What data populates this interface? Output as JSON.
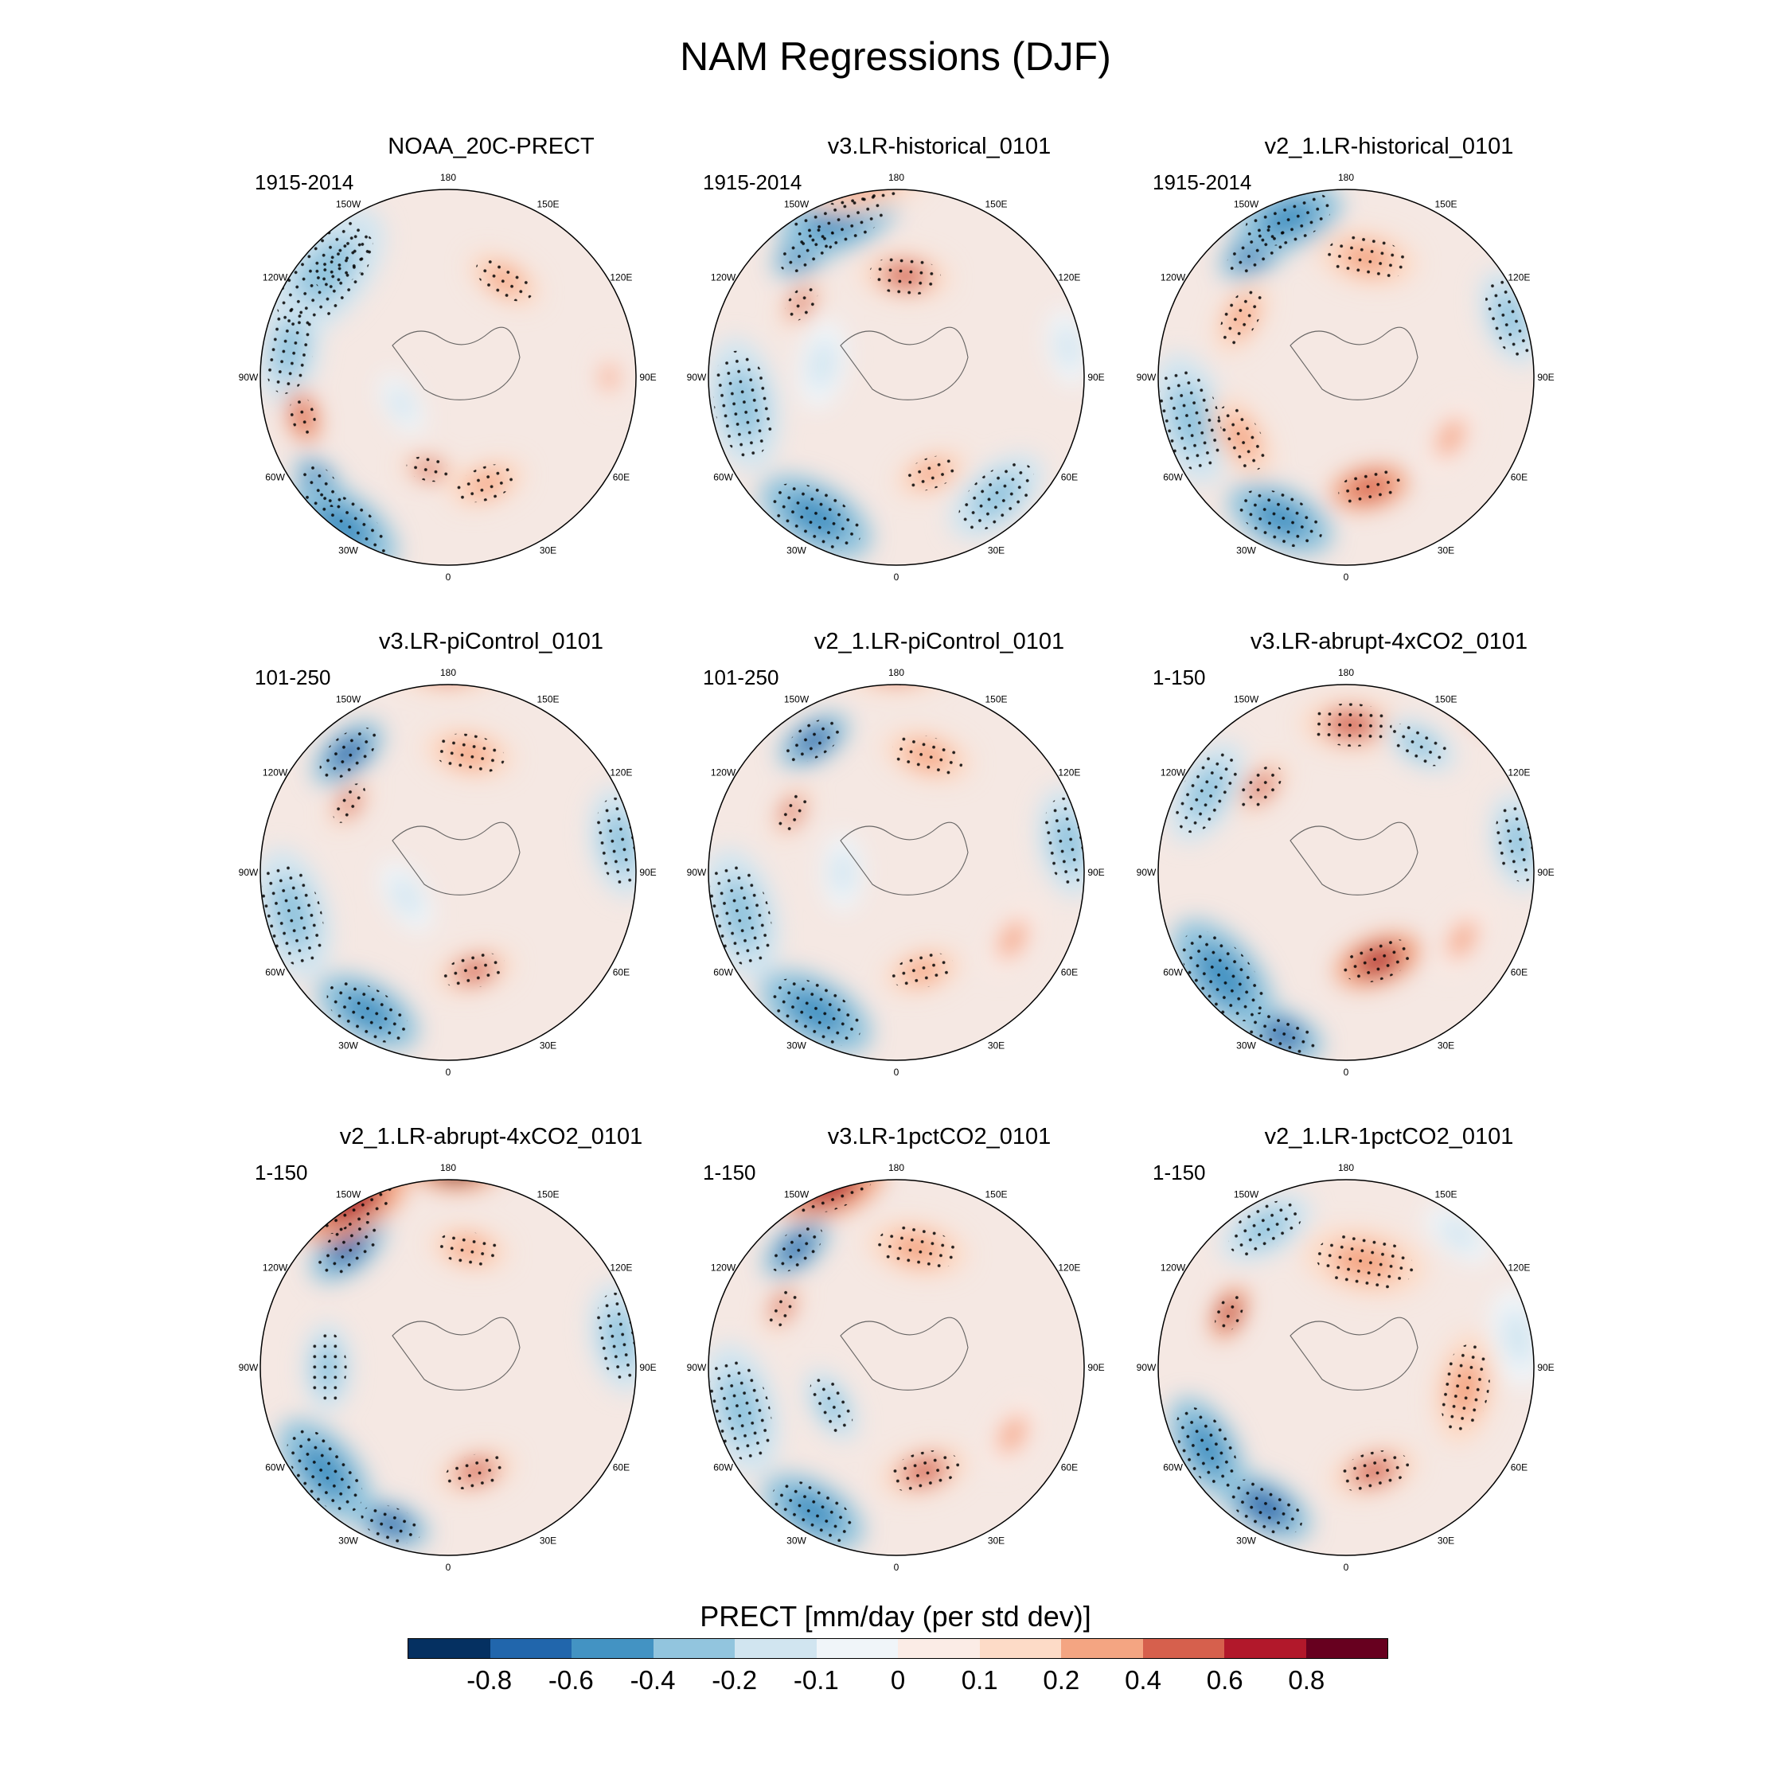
{
  "title": "NAM Regressions (DJF)",
  "lon_labels": [
    "180",
    "150E",
    "120E",
    "90E",
    "60E",
    "30E",
    "0",
    "30W",
    "60W",
    "90W",
    "120W",
    "150W"
  ],
  "panels": [
    {
      "title": "NOAA_20C-PRECT",
      "period": "1915-2014",
      "features": [
        [
          "b",
          -0.7,
          -138,
          32,
          0.16
        ],
        [
          "b",
          -0.7,
          -50,
          28,
          0.12
        ],
        [
          "b",
          -0.5,
          -35,
          22,
          0.22
        ],
        [
          "b",
          -0.4,
          -130,
          30,
          0.28
        ],
        [
          "b",
          -0.3,
          -100,
          30,
          0.2
        ],
        [
          "r",
          0.4,
          -12,
          55,
          0.1
        ],
        [
          "r",
          0.3,
          20,
          48,
          0.14
        ],
        [
          "r",
          0.5,
          -75,
          34,
          0.1
        ],
        [
          "r",
          0.3,
          150,
          48,
          0.14
        ],
        [
          "b",
          -0.2,
          -60,
          70,
          0.12
        ],
        [
          "r",
          0.2,
          90,
          30,
          0.1
        ]
      ]
    },
    {
      "title": "v3.LR-historical_0101",
      "period": "1915-2014",
      "features": [
        [
          "b",
          -0.8,
          -145,
          32,
          0.14
        ],
        [
          "b",
          -0.6,
          -160,
          27,
          0.22
        ],
        [
          "b",
          -0.5,
          -30,
          30,
          0.22
        ],
        [
          "b",
          -0.4,
          -80,
          32,
          0.24
        ],
        [
          "b",
          -0.3,
          40,
          32,
          0.2
        ],
        [
          "r",
          0.4,
          175,
          52,
          0.16
        ],
        [
          "r",
          0.3,
          -170,
          14,
          0.24
        ],
        [
          "r",
          0.4,
          -128,
          45,
          0.1
        ],
        [
          "r",
          0.3,
          20,
          52,
          0.13
        ],
        [
          "b",
          -0.2,
          -100,
          62,
          0.16
        ],
        [
          "b",
          -0.2,
          100,
          25,
          0.14
        ]
      ]
    },
    {
      "title": "v2_1.LR-historical_0101",
      "period": "1915-2014",
      "features": [
        [
          "b",
          -0.7,
          -145,
          32,
          0.15
        ],
        [
          "b",
          -0.5,
          -160,
          27,
          0.2
        ],
        [
          "b",
          -0.6,
          -25,
          32,
          0.2
        ],
        [
          "b",
          -0.4,
          -75,
          30,
          0.24
        ],
        [
          "b",
          -0.3,
          110,
          25,
          0.18
        ],
        [
          "r",
          0.5,
          12,
          48,
          0.14
        ],
        [
          "r",
          0.3,
          170,
          45,
          0.18
        ],
        [
          "r",
          0.3,
          -120,
          45,
          0.14
        ],
        [
          "r",
          0.3,
          -60,
          45,
          0.16
        ],
        [
          "r",
          0.2,
          60,
          45,
          0.14
        ]
      ]
    },
    {
      "title": "v3.LR-piControl_0101",
      "period": "101-250",
      "features": [
        [
          "b",
          -0.7,
          -140,
          32,
          0.15
        ],
        [
          "b",
          -0.6,
          -30,
          30,
          0.2
        ],
        [
          "b",
          -0.4,
          -75,
          30,
          0.24
        ],
        [
          "b",
          -0.3,
          100,
          25,
          0.2
        ],
        [
          "r",
          0.4,
          180,
          12,
          0.2
        ],
        [
          "r",
          0.3,
          170,
          45,
          0.16
        ],
        [
          "r",
          0.4,
          -125,
          45,
          0.1
        ],
        [
          "r",
          0.4,
          15,
          52,
          0.14
        ],
        [
          "b",
          -0.2,
          -60,
          72,
          0.14
        ]
      ]
    },
    {
      "title": "v2_1.LR-piControl_0101",
      "period": "101-250",
      "features": [
        [
          "b",
          -0.8,
          -148,
          32,
          0.14
        ],
        [
          "b",
          -0.6,
          -30,
          30,
          0.22
        ],
        [
          "b",
          -0.4,
          -75,
          30,
          0.24
        ],
        [
          "b",
          -0.3,
          100,
          25,
          0.2
        ],
        [
          "r",
          0.4,
          180,
          12,
          0.2
        ],
        [
          "r",
          0.3,
          165,
          45,
          0.16
        ],
        [
          "r",
          0.4,
          -120,
          45,
          0.1
        ],
        [
          "r",
          0.3,
          15,
          52,
          0.14
        ],
        [
          "b",
          -0.2,
          -90,
          70,
          0.14
        ],
        [
          "r",
          0.2,
          60,
          40,
          0.14
        ]
      ]
    },
    {
      "title": "v3.LR-abrupt-4xCO2_0101",
      "period": "1-150",
      "features": [
        [
          "b",
          -0.8,
          -22,
          25,
          0.16
        ],
        [
          "b",
          -0.5,
          -50,
          30,
          0.24
        ],
        [
          "r",
          0.6,
          20,
          55,
          0.16
        ],
        [
          "r",
          0.4,
          178,
          35,
          0.18
        ],
        [
          "r",
          0.4,
          -135,
          45,
          0.12
        ],
        [
          "b",
          -0.4,
          150,
          35,
          0.14
        ],
        [
          "b",
          -0.3,
          -120,
          30,
          0.2
        ],
        [
          "b",
          -0.3,
          100,
          25,
          0.18
        ],
        [
          "r",
          0.5,
          140,
          10,
          0.1
        ],
        [
          "r",
          0.2,
          60,
          40,
          0.14
        ]
      ]
    },
    {
      "title": "v2_1.LR-abrupt-4xCO2_0101",
      "period": "1-150",
      "features": [
        [
          "b",
          -0.8,
          -140,
          32,
          0.16
        ],
        [
          "r",
          0.8,
          178,
          15,
          0.16
        ],
        [
          "r",
          0.6,
          -150,
          18,
          0.22
        ],
        [
          "b",
          -0.7,
          -20,
          28,
          0.14
        ],
        [
          "b",
          -0.5,
          -50,
          30,
          0.22
        ],
        [
          "r",
          0.4,
          15,
          50,
          0.14
        ],
        [
          "b",
          -0.3,
          100,
          25,
          0.2
        ],
        [
          "b",
          -0.3,
          -90,
          45,
          0.16
        ],
        [
          "r",
          0.3,
          170,
          45,
          0.14
        ]
      ]
    },
    {
      "title": "v3.LR-1pctCO2_0101",
      "period": "1-150",
      "features": [
        [
          "b",
          -0.8,
          -140,
          32,
          0.14
        ],
        [
          "b",
          -0.6,
          -30,
          28,
          0.2
        ],
        [
          "b",
          -0.4,
          -75,
          30,
          0.24
        ],
        [
          "r",
          0.6,
          -160,
          18,
          0.2
        ],
        [
          "r",
          0.4,
          -118,
          42,
          0.1
        ],
        [
          "r",
          0.3,
          170,
          45,
          0.18
        ],
        [
          "r",
          0.4,
          15,
          50,
          0.16
        ],
        [
          "b",
          -0.3,
          -60,
          62,
          0.14
        ],
        [
          "r",
          0.2,
          60,
          40,
          0.14
        ]
      ]
    },
    {
      "title": "v2_1.LR-1pctCO2_0101",
      "period": "1-150",
      "features": [
        [
          "b",
          -0.7,
          -30,
          30,
          0.18
        ],
        [
          "b",
          -0.5,
          -60,
          30,
          0.2
        ],
        [
          "b",
          -0.4,
          -150,
          30,
          0.18
        ],
        [
          "r",
          0.6,
          -115,
          42,
          0.1
        ],
        [
          "r",
          0.4,
          15,
          50,
          0.16
        ],
        [
          "r",
          0.3,
          170,
          50,
          0.22
        ],
        [
          "r",
          0.3,
          80,
          45,
          0.2
        ],
        [
          "b",
          -0.2,
          100,
          25,
          0.18
        ],
        [
          "b",
          -0.2,
          140,
          25,
          0.14
        ]
      ]
    }
  ],
  "colorbar": {
    "title": "PRECT [mm/day (per std dev)]",
    "colors": [
      "#053061",
      "#2166ac",
      "#4393c3",
      "#92c5de",
      "#d1e5f0",
      "#f0f5f9",
      "#fbece6",
      "#fddbc7",
      "#f4a582",
      "#d6604d",
      "#b2182b",
      "#67001f"
    ],
    "tick_labels": [
      "-0.8",
      "-0.6",
      "-0.4",
      "-0.2",
      "-0.1",
      "0",
      "0.1",
      "0.2",
      "0.4",
      "0.6",
      "0.8"
    ]
  }
}
